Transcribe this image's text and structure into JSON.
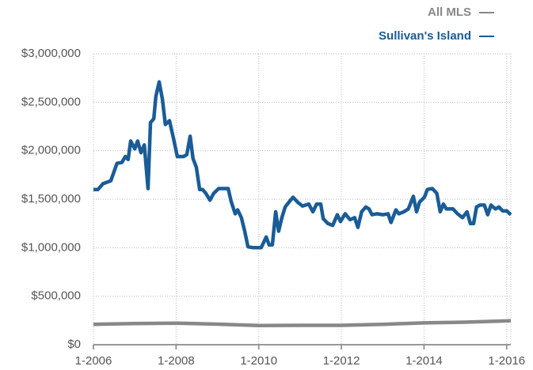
{
  "chart_data": {
    "type": "line",
    "legend": "top-right",
    "grid": true,
    "xlim": [
      2006,
      2016.1
    ],
    "xticks": [
      {
        "value": 2006,
        "label": "1-2006"
      },
      {
        "value": 2008,
        "label": "1-2008"
      },
      {
        "value": 2010,
        "label": "1-2010"
      },
      {
        "value": 2012,
        "label": "1-2012"
      },
      {
        "value": 2014,
        "label": "1-2014"
      },
      {
        "value": 2016,
        "label": "1-2016"
      }
    ],
    "ylim": [
      0,
      3000000
    ],
    "yticks": [
      {
        "value": 0,
        "label": "$0"
      },
      {
        "value": 500000,
        "label": "$500,000"
      },
      {
        "value": 1000000,
        "label": "$1,000,000"
      },
      {
        "value": 1500000,
        "label": "$1,500,000"
      },
      {
        "value": 2000000,
        "label": "$2,000,000"
      },
      {
        "value": 2500000,
        "label": "$2,500,000"
      },
      {
        "value": 3000000,
        "label": "$3,000,000"
      }
    ],
    "series": [
      {
        "name": "All MLS",
        "color": "#888888",
        "x": [
          2006,
          2007,
          2008,
          2009,
          2010,
          2011,
          2012,
          2013,
          2014,
          2015,
          2016,
          2016.1
        ],
        "values": [
          210000,
          218000,
          222000,
          212000,
          198000,
          200000,
          200000,
          210000,
          225000,
          232000,
          245000,
          248000
        ]
      },
      {
        "name": "Sullivan's Island",
        "color": "#1a5c96",
        "x": [
          2006,
          2006.11,
          2006.23,
          2006.42,
          2006.57,
          2006.69,
          2006.77,
          2006.84,
          2006.9,
          2007,
          2007.07,
          2007.15,
          2007.23,
          2007.32,
          2007.38,
          2007.46,
          2007.51,
          2007.59,
          2007.67,
          2007.74,
          2007.84,
          2007.93,
          2008.03,
          2008.18,
          2008.26,
          2008.34,
          2008.41,
          2008.49,
          2008.57,
          2008.64,
          2008.72,
          2008.82,
          2008.91,
          2009.03,
          2009.26,
          2009.33,
          2009.43,
          2009.49,
          2009.58,
          2009.66,
          2009.74,
          2009.87,
          2010.06,
          2010.18,
          2010.25,
          2010.33,
          2010.41,
          2010.48,
          2010.56,
          2010.64,
          2010.75,
          2010.83,
          2010.94,
          2011.06,
          2011.21,
          2011.31,
          2011.4,
          2011.5,
          2011.56,
          2011.67,
          2011.79,
          2011.9,
          2011.98,
          2012.09,
          2012.21,
          2012.32,
          2012.4,
          2012.49,
          2012.59,
          2012.67,
          2012.74,
          2012.86,
          2013.01,
          2013.13,
          2013.2,
          2013.32,
          2013.39,
          2013.51,
          2013.62,
          2013.74,
          2013.82,
          2013.89,
          2014.01,
          2014.08,
          2014.2,
          2014.31,
          2014.39,
          2014.47,
          2014.54,
          2014.7,
          2014.81,
          2014.93,
          2015.04,
          2015.12,
          2015.2,
          2015.27,
          2015.35,
          2015.46,
          2015.54,
          2015.62,
          2015.73,
          2015.81,
          2015.9,
          2016,
          2016.1
        ],
        "values": [
          1600000,
          1600000,
          1660000,
          1690000,
          1870000,
          1880000,
          1940000,
          1910000,
          2100000,
          2020000,
          2100000,
          1980000,
          2060000,
          1610000,
          2290000,
          2330000,
          2560000,
          2710000,
          2530000,
          2270000,
          2310000,
          2140000,
          1940000,
          1940000,
          1960000,
          2150000,
          1920000,
          1830000,
          1600000,
          1600000,
          1560000,
          1490000,
          1560000,
          1610000,
          1610000,
          1480000,
          1350000,
          1390000,
          1310000,
          1170000,
          1010000,
          1000000,
          1000000,
          1110000,
          1030000,
          1030000,
          1370000,
          1170000,
          1310000,
          1420000,
          1480000,
          1520000,
          1470000,
          1430000,
          1450000,
          1370000,
          1450000,
          1450000,
          1300000,
          1250000,
          1230000,
          1340000,
          1270000,
          1350000,
          1290000,
          1310000,
          1210000,
          1370000,
          1420000,
          1400000,
          1340000,
          1350000,
          1340000,
          1350000,
          1260000,
          1390000,
          1350000,
          1370000,
          1400000,
          1530000,
          1370000,
          1470000,
          1520000,
          1600000,
          1610000,
          1560000,
          1370000,
          1450000,
          1400000,
          1400000,
          1350000,
          1310000,
          1370000,
          1250000,
          1250000,
          1420000,
          1440000,
          1440000,
          1340000,
          1440000,
          1400000,
          1420000,
          1380000,
          1380000,
          1340000
        ]
      }
    ]
  }
}
